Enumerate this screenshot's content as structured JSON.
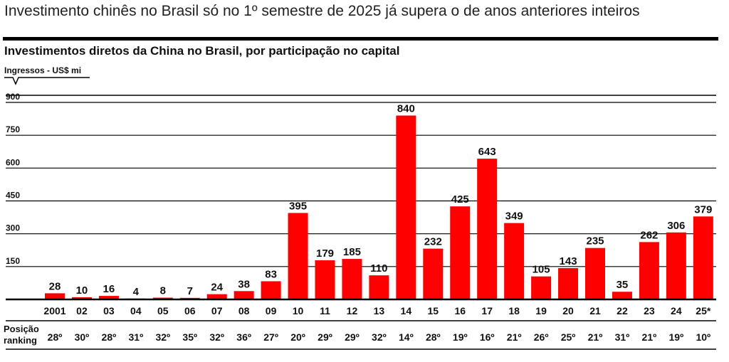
{
  "headline": "Investimento chinês no Brasil só no 1º semestre de 2025 já supera o de anos anteriores inteiros",
  "colors": {
    "bar": "#ff0000",
    "grid": "#000000",
    "text": "#111111"
  },
  "chart_data": {
    "type": "bar",
    "title": "Investimentos diretos da China no Brasil, por participação no capital",
    "ylabel": "Ingressos - US$ mi",
    "ylim": [
      0,
      900
    ],
    "yticks": [
      "900",
      "750",
      "600",
      "450",
      "300",
      "150"
    ],
    "ytick_values": [
      900,
      750,
      600,
      450,
      300,
      150
    ],
    "grid": true,
    "categories": [
      "2001",
      "02",
      "03",
      "04",
      "05",
      "06",
      "07",
      "08",
      "09",
      "10",
      "11",
      "12",
      "13",
      "14",
      "15",
      "16",
      "17",
      "18",
      "19",
      "20",
      "21",
      "22",
      "23",
      "24",
      "25*"
    ],
    "values": [
      28,
      10,
      16,
      4,
      8,
      7,
      24,
      38,
      83,
      395,
      179,
      185,
      110,
      840,
      232,
      425,
      643,
      349,
      105,
      143,
      235,
      35,
      262,
      306,
      379
    ],
    "ranking_label": [
      "Posição",
      "ranking"
    ],
    "ranking": [
      "28º",
      "30º",
      "28º",
      "31º",
      "32º",
      "35º",
      "32º",
      "36º",
      "27º",
      "20º",
      "29º",
      "29º",
      "32º",
      "14º",
      "28º",
      "19º",
      "16º",
      "21º",
      "26º",
      "25º",
      "21º",
      "31º",
      "21º",
      "19º",
      "10º"
    ]
  }
}
